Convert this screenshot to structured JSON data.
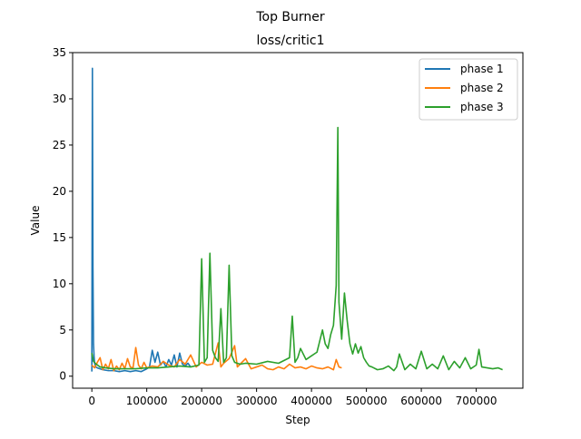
{
  "figure": {
    "suptitle": "Top Burner"
  },
  "chart_data": {
    "type": "line",
    "title": "loss/critic1",
    "xlabel": "Step",
    "ylabel": "Value",
    "xlim": [
      -35000,
      785000
    ],
    "ylim": [
      -1.3,
      35
    ],
    "xticks": [
      0,
      100000,
      200000,
      300000,
      400000,
      500000,
      600000,
      700000
    ],
    "xtick_labels": [
      "0",
      "100000",
      "200000",
      "300000",
      "400000",
      "500000",
      "600000",
      "700000"
    ],
    "yticks": [
      0,
      5,
      10,
      15,
      20,
      25,
      30,
      35
    ],
    "ytick_labels": [
      "0",
      "5",
      "10",
      "15",
      "20",
      "25",
      "30",
      "35"
    ],
    "grid": false,
    "legend_position": "top-right",
    "series": [
      {
        "name": "phase 1",
        "color": "#1f77b4",
        "x": [
          0,
          1000,
          2000,
          3000,
          4000,
          5000,
          7000,
          10000,
          15000,
          20000,
          30000,
          40000,
          50000,
          60000,
          70000,
          80000,
          90000,
          100000,
          105000,
          110000,
          115000,
          120000,
          125000,
          130000,
          135000,
          140000,
          145000,
          150000,
          155000,
          160000,
          165000,
          170000,
          175000,
          180000
        ],
        "values": [
          0.5,
          33.3,
          11.8,
          3.5,
          2.2,
          1.4,
          1.0,
          0.9,
          0.8,
          0.7,
          0.6,
          0.6,
          0.5,
          0.6,
          0.5,
          0.6,
          0.5,
          0.8,
          1.0,
          2.8,
          1.5,
          2.6,
          1.2,
          1.6,
          1.0,
          1.8,
          1.2,
          2.3,
          1.0,
          2.5,
          1.3,
          1.1,
          1.4,
          1.0
        ]
      },
      {
        "name": "phase 2",
        "color": "#ff7f0e",
        "x": [
          0,
          5000,
          10000,
          15000,
          20000,
          25000,
          30000,
          35000,
          40000,
          45000,
          50000,
          55000,
          60000,
          65000,
          70000,
          75000,
          80000,
          85000,
          90000,
          95000,
          100000,
          110000,
          120000,
          130000,
          140000,
          150000,
          160000,
          170000,
          180000,
          190000,
          200000,
          210000,
          220000,
          230000,
          235000,
          240000,
          250000,
          260000,
          265000,
          270000,
          280000,
          290000,
          300000,
          310000,
          320000,
          330000,
          340000,
          350000,
          360000,
          370000,
          380000,
          390000,
          400000,
          410000,
          420000,
          430000,
          440000,
          445000,
          450000,
          455000
        ],
        "values": [
          1.2,
          0.9,
          1.5,
          2.0,
          0.7,
          1.3,
          0.8,
          1.8,
          0.6,
          1.1,
          0.7,
          1.4,
          0.8,
          1.9,
          1.0,
          0.9,
          3.1,
          1.2,
          0.8,
          1.5,
          0.9,
          1.1,
          1.0,
          1.6,
          1.2,
          1.0,
          1.8,
          1.3,
          2.3,
          1.0,
          1.5,
          1.2,
          1.3,
          3.6,
          1.0,
          1.4,
          1.9,
          3.3,
          1.0,
          1.3,
          1.9,
          0.8,
          1.0,
          1.2,
          0.8,
          0.7,
          1.0,
          0.8,
          1.3,
          0.9,
          1.0,
          0.8,
          1.1,
          0.9,
          0.8,
          1.0,
          0.7,
          1.8,
          1.0,
          0.9
        ]
      },
      {
        "name": "phase 3",
        "color": "#2ca02c",
        "x": [
          0,
          3000,
          8000,
          15000,
          25000,
          40000,
          60000,
          80000,
          100000,
          120000,
          140000,
          160000,
          180000,
          195000,
          200000,
          205000,
          210000,
          215000,
          220000,
          225000,
          230000,
          235000,
          240000,
          245000,
          250000,
          255000,
          260000,
          270000,
          280000,
          300000,
          320000,
          340000,
          360000,
          365000,
          370000,
          375000,
          380000,
          390000,
          400000,
          410000,
          420000,
          425000,
          430000,
          435000,
          440000,
          445000,
          448000,
          450000,
          455000,
          460000,
          465000,
          470000,
          475000,
          480000,
          485000,
          490000,
          495000,
          500000,
          505000,
          510000,
          520000,
          530000,
          540000,
          550000,
          555000,
          560000,
          570000,
          580000,
          590000,
          600000,
          610000,
          620000,
          630000,
          640000,
          650000,
          660000,
          670000,
          680000,
          690000,
          700000,
          705000,
          710000,
          720000,
          730000,
          740000,
          748000
        ],
        "values": [
          2.5,
          1.6,
          1.3,
          1.0,
          0.9,
          0.8,
          0.8,
          0.8,
          0.9,
          0.9,
          1.0,
          1.1,
          1.0,
          1.2,
          12.7,
          1.5,
          2.0,
          13.3,
          2.8,
          2.0,
          1.6,
          7.3,
          1.5,
          2.0,
          12.0,
          2.2,
          1.5,
          1.3,
          1.4,
          1.3,
          1.6,
          1.4,
          2.0,
          6.5,
          1.5,
          2.0,
          3.0,
          1.8,
          2.2,
          2.6,
          5.0,
          3.5,
          3.0,
          4.5,
          5.5,
          9.8,
          26.9,
          8.0,
          4.0,
          9.0,
          6.0,
          3.5,
          2.4,
          3.5,
          2.5,
          3.2,
          2.0,
          1.5,
          1.1,
          1.0,
          0.7,
          0.8,
          1.1,
          0.6,
          1.0,
          2.4,
          0.7,
          1.3,
          0.8,
          2.7,
          0.8,
          1.3,
          0.8,
          2.2,
          0.7,
          1.6,
          0.9,
          2.0,
          0.8,
          1.2,
          2.9,
          1.0,
          0.9,
          0.8,
          0.9,
          0.7
        ]
      }
    ]
  }
}
